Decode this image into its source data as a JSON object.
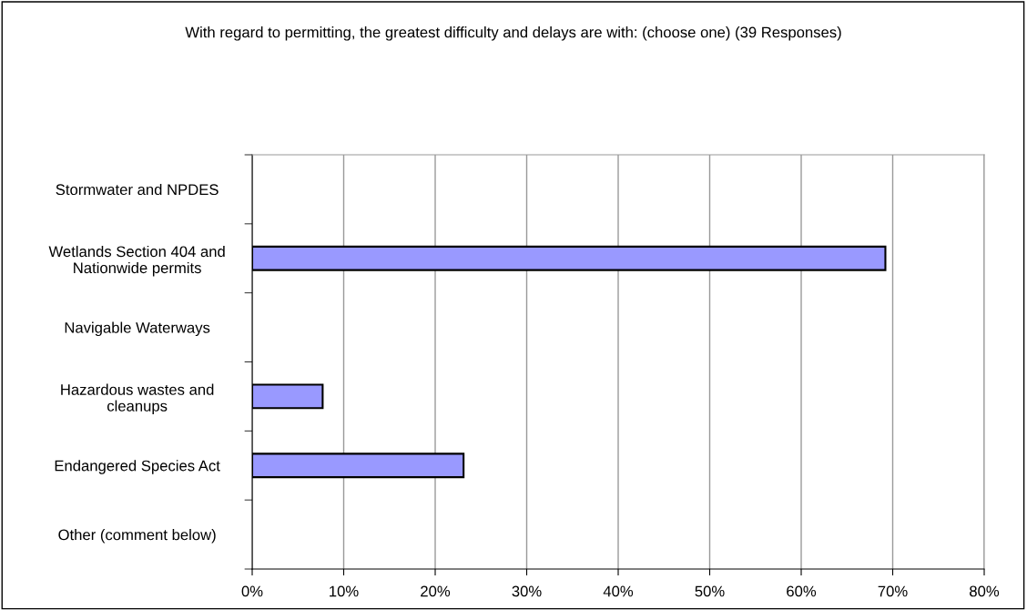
{
  "chart_data": {
    "type": "bar",
    "orientation": "horizontal",
    "title": "With regard to permitting, the greatest difficulty and delays are with: (choose one) (39 Responses)",
    "categories": [
      "Stormwater and NPDES",
      "Wetlands Section 404 and\nNationwide permits",
      "Navigable Waterways",
      "Hazardous wastes and\ncleanups",
      "Endangered Species Act",
      "Other (comment below)"
    ],
    "values": [
      0,
      69.2,
      0,
      7.7,
      23.1,
      0
    ],
    "color": "#9999ff",
    "xlim": [
      0,
      80
    ],
    "xticks": [
      {
        "value": 0,
        "label": "0%"
      },
      {
        "value": 10,
        "label": "10%"
      },
      {
        "value": 20,
        "label": "20%"
      },
      {
        "value": 30,
        "label": "30%"
      },
      {
        "value": 40,
        "label": "40%"
      },
      {
        "value": 50,
        "label": "50%"
      },
      {
        "value": 60,
        "label": "60%"
      },
      {
        "value": 70,
        "label": "70%"
      },
      {
        "value": 80,
        "label": "80%"
      }
    ],
    "grid": "x"
  }
}
